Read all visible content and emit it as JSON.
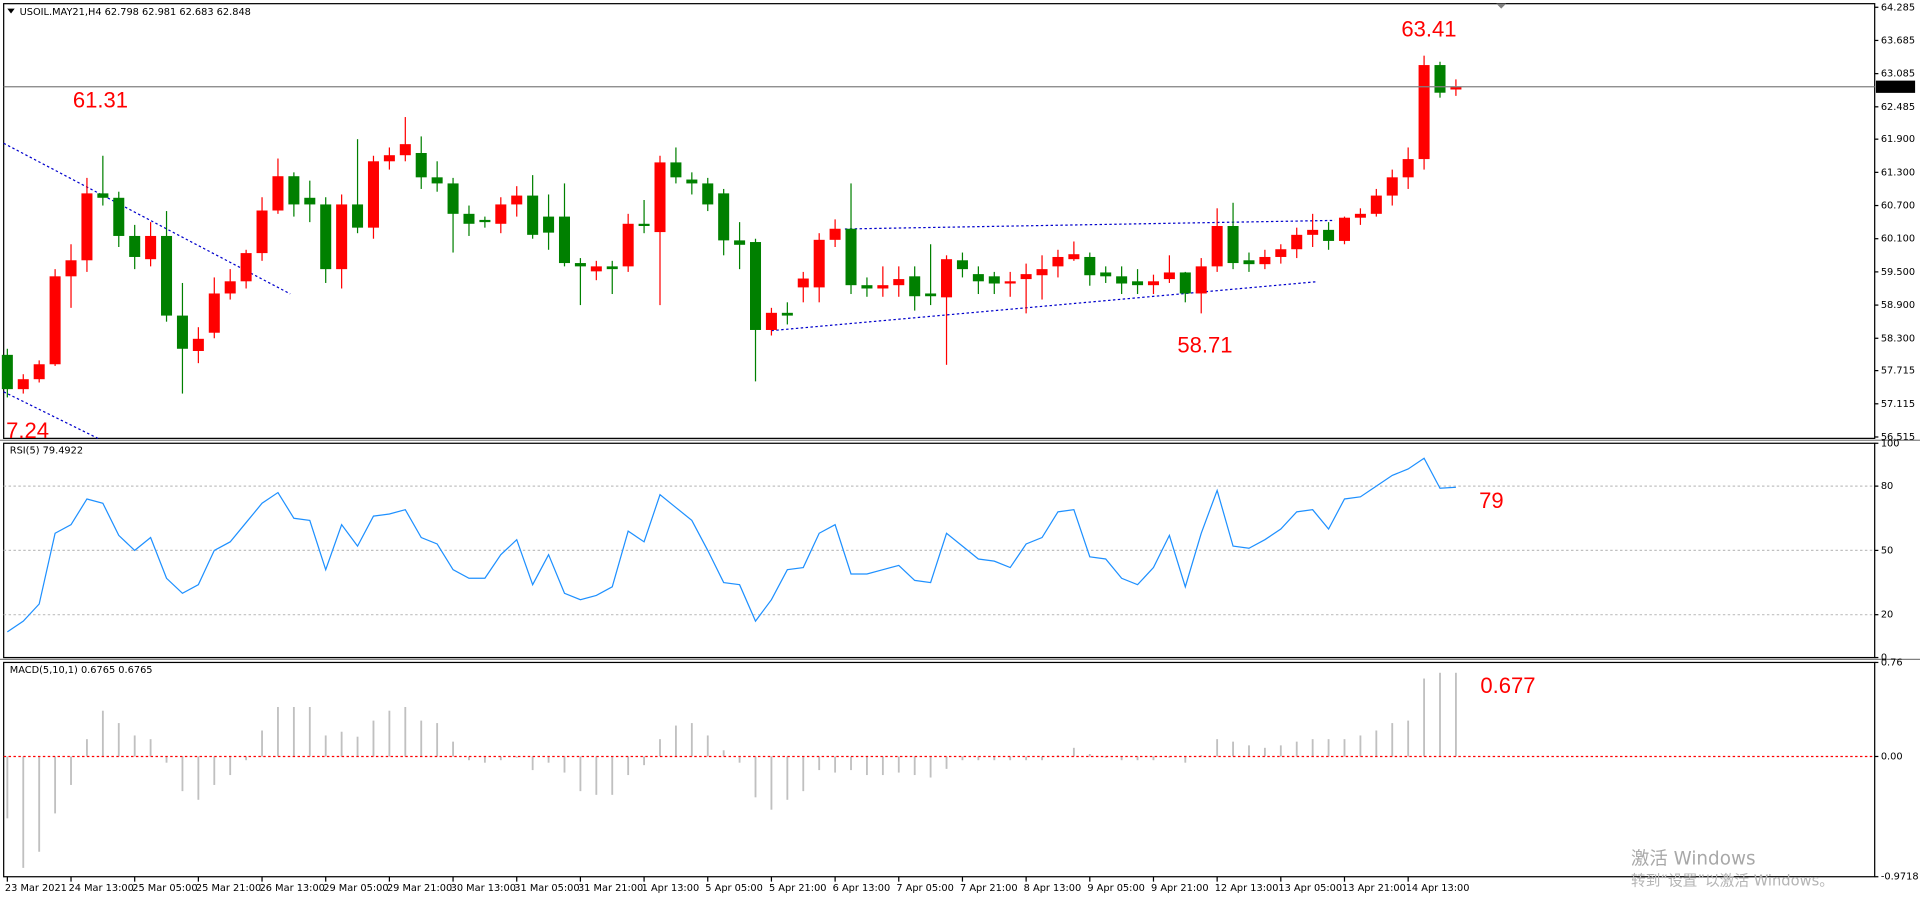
{
  "chart_data": [
    {
      "type": "candlestick",
      "title": "USOIL.MAY21,H4 62.798 62.981 62.683 62.848",
      "categories": [
        "23 Mar 2021",
        null,
        null,
        null,
        "24 Mar 13:00",
        null,
        null,
        null,
        "25 Mar 05:00",
        null,
        null,
        null,
        "25 Mar 21:00",
        null,
        null,
        null,
        "26 Mar 13:00",
        null,
        null,
        null,
        "29 Mar 05:00",
        null,
        null,
        null,
        "29 Mar 21:00",
        null,
        null,
        null,
        "30 Mar 13:00",
        null,
        null,
        null,
        "31 Mar 05:00",
        null,
        null,
        null,
        "31 Mar 21:00",
        null,
        null,
        null,
        "1 Apr 13:00",
        null,
        null,
        null,
        "5 Apr 05:00",
        null,
        null,
        null,
        "5 Apr 21:00",
        null,
        null,
        null,
        "6 Apr 13:00",
        null,
        null,
        null,
        "7 Apr 05:00",
        null,
        null,
        null,
        "7 Apr 21:00",
        null,
        null,
        null,
        "8 Apr 13:00",
        null,
        null,
        null,
        "9 Apr 05:00",
        null,
        null,
        null,
        "9 Apr 21:00",
        null,
        null,
        null,
        "12 Apr 13:00",
        null,
        null,
        null,
        "13 Apr 05:00",
        null,
        null,
        null,
        "13 Apr 21:00",
        null,
        null,
        null,
        "14 Apr 13:00",
        null,
        null,
        null
      ],
      "open": [
        58.0,
        57.38,
        57.56,
        57.83,
        59.42,
        59.71,
        60.92,
        60.84,
        60.15,
        59.73,
        60.15,
        58.71,
        58.07,
        58.4,
        59.11,
        59.33,
        59.84,
        60.61,
        61.23,
        60.84,
        60.72,
        59.55,
        60.72,
        60.3,
        61.5,
        61.61,
        61.65,
        61.21,
        61.1,
        60.55,
        60.44,
        60.37,
        60.72,
        60.88,
        60.5,
        60.5,
        59.66,
        59.51,
        59.6,
        59.6,
        60.37,
        60.22,
        61.48,
        61.17,
        61.1,
        60.92,
        60.07,
        60.04,
        58.45,
        58.76,
        59.22,
        59.22,
        60.08,
        60.28,
        59.26,
        59.2,
        59.26,
        59.42,
        59.11,
        59.04,
        59.71,
        59.46,
        59.42,
        59.29,
        59.37,
        59.44,
        59.6,
        59.73,
        59.77,
        59.49,
        59.42,
        59.33,
        59.26,
        59.37,
        59.49,
        59.11,
        59.6,
        60.33,
        59.71,
        59.64,
        59.77,
        59.91,
        60.17,
        60.26,
        60.06,
        60.48,
        60.55,
        60.88,
        61.21,
        61.54,
        63.24,
        62.798
      ],
      "high": [
        58.11,
        57.65,
        57.9,
        59.55,
        60.0,
        61.2,
        61.6,
        60.95,
        60.35,
        60.4,
        60.6,
        59.3,
        58.5,
        59.4,
        59.55,
        59.9,
        60.85,
        61.55,
        61.3,
        61.15,
        60.85,
        60.9,
        61.9,
        61.6,
        61.75,
        62.3,
        61.95,
        61.5,
        61.2,
        60.7,
        60.5,
        60.85,
        61.05,
        61.25,
        60.9,
        61.1,
        59.75,
        59.7,
        59.7,
        60.55,
        60.8,
        61.6,
        61.75,
        61.3,
        61.2,
        61.0,
        60.4,
        60.1,
        58.85,
        58.95,
        59.5,
        60.2,
        60.45,
        61.1,
        59.4,
        59.6,
        59.6,
        59.6,
        60.0,
        59.8,
        59.85,
        59.6,
        59.5,
        59.5,
        59.65,
        59.8,
        59.9,
        60.05,
        59.85,
        59.6,
        59.6,
        59.55,
        59.45,
        59.8,
        59.5,
        59.75,
        60.65,
        60.75,
        59.85,
        59.9,
        60.0,
        60.3,
        60.55,
        60.4,
        60.5,
        60.65,
        61.0,
        61.35,
        61.75,
        63.41,
        63.3,
        62.981
      ],
      "low": [
        57.23,
        57.3,
        57.5,
        57.8,
        58.85,
        59.5,
        60.7,
        59.95,
        59.55,
        59.6,
        58.6,
        57.3,
        57.85,
        58.3,
        59.0,
        59.2,
        59.7,
        60.55,
        60.5,
        60.4,
        59.3,
        59.2,
        60.2,
        60.1,
        61.35,
        61.5,
        61.0,
        60.95,
        59.85,
        60.15,
        60.3,
        60.2,
        60.5,
        60.1,
        59.9,
        59.6,
        58.9,
        59.35,
        59.1,
        59.5,
        60.2,
        58.9,
        61.1,
        60.9,
        60.6,
        59.8,
        59.55,
        57.52,
        58.35,
        58.55,
        58.95,
        58.95,
        59.95,
        59.1,
        59.05,
        59.05,
        59.05,
        58.8,
        58.9,
        57.82,
        59.4,
        59.1,
        59.1,
        59.05,
        58.75,
        59.0,
        59.4,
        59.7,
        59.25,
        59.3,
        59.1,
        59.1,
        59.1,
        59.3,
        58.95,
        58.75,
        59.5,
        59.55,
        59.5,
        59.55,
        59.65,
        59.75,
        59.95,
        59.9,
        60.0,
        60.35,
        60.5,
        60.7,
        61.0,
        61.35,
        62.65,
        62.683
      ],
      "close": [
        57.38,
        57.56,
        57.83,
        59.42,
        59.71,
        60.92,
        60.84,
        60.15,
        59.77,
        60.15,
        58.71,
        58.11,
        58.29,
        59.11,
        59.33,
        59.84,
        60.61,
        61.23,
        60.72,
        60.72,
        59.55,
        60.72,
        60.3,
        61.5,
        61.61,
        61.81,
        61.21,
        61.1,
        60.55,
        60.37,
        60.4,
        60.72,
        60.88,
        60.17,
        60.21,
        59.66,
        59.6,
        59.6,
        59.55,
        60.37,
        60.33,
        61.48,
        61.21,
        61.1,
        60.72,
        60.07,
        59.99,
        58.45,
        58.76,
        58.71,
        59.38,
        60.08,
        60.28,
        59.26,
        59.2,
        59.26,
        59.37,
        59.06,
        59.06,
        59.73,
        59.55,
        59.33,
        59.29,
        59.33,
        59.46,
        59.55,
        59.77,
        59.82,
        59.44,
        59.42,
        59.29,
        59.26,
        59.33,
        59.49,
        59.11,
        59.6,
        60.33,
        59.66,
        59.64,
        59.77,
        59.91,
        60.17,
        60.26,
        60.06,
        60.48,
        60.55,
        60.88,
        61.21,
        61.54,
        63.24,
        62.74,
        62.848
      ],
      "up_color": "#ff0000",
      "down_color": "#008000",
      "ylim": [
        56.49,
        64.35
      ],
      "yticks": [
        64.285,
        63.685,
        63.085,
        62.485,
        {
          "value": 61.9,
          "label": "61.900"
        },
        {
          "value": 61.3,
          "label": "61.300"
        },
        {
          "value": 60.7,
          "label": "60.700"
        },
        {
          "value": 60.1,
          "label": "60.100"
        },
        {
          "value": 59.5,
          "label": "59.500"
        },
        {
          "value": 58.9,
          "label": "58.900"
        },
        {
          "value": 58.3,
          "label": "58.300"
        },
        57.715,
        57.115,
        56.515
      ],
      "grid": false,
      "last_price": 62.848,
      "annotations": [
        "63.41",
        "61.31",
        "58.71",
        "7.24"
      ],
      "annotation_color": "#ff0000"
    },
    {
      "type": "line",
      "title": "RSI(5) 79.4922",
      "values": [
        12,
        17,
        25,
        58,
        62,
        74,
        72,
        57,
        50,
        56,
        37,
        30,
        34,
        50,
        54,
        63,
        72,
        77,
        65,
        64,
        41,
        62,
        52,
        66,
        67,
        69,
        56,
        53,
        41,
        37,
        37,
        48,
        55,
        34,
        48,
        30,
        27,
        29,
        33,
        59,
        54,
        76,
        70,
        64,
        50,
        35,
        34,
        17,
        27,
        41,
        42,
        58,
        62,
        39,
        39,
        41,
        43,
        36,
        35,
        58,
        52,
        46,
        45,
        42,
        53,
        56,
        68,
        69,
        47,
        46,
        37,
        34,
        42,
        57,
        33,
        58,
        78,
        52,
        51,
        55,
        60,
        68,
        69,
        60,
        74,
        75,
        80,
        85,
        88,
        93,
        79,
        79.4922
      ],
      "color": "#1e90ff",
      "ylim": [
        0,
        100
      ],
      "yticks": [
        100,
        80,
        50,
        20,
        0
      ],
      "grid": true,
      "annotations": [
        "79"
      ],
      "annotation_color": "#ff0000"
    },
    {
      "type": "bar",
      "title": "MACD(5,10,1) 0.6765 0.6765",
      "values": [
        -0.5,
        -0.9,
        -0.77,
        -0.46,
        -0.23,
        0.14,
        0.37,
        0.27,
        0.17,
        0.14,
        -0.05,
        -0.28,
        -0.35,
        -0.23,
        -0.15,
        -0.03,
        0.21,
        0.4,
        0.4,
        0.4,
        0.17,
        0.2,
        0.16,
        0.29,
        0.37,
        0.4,
        0.29,
        0.27,
        0.12,
        -0.03,
        -0.05,
        -0.03,
        -0.01,
        -0.11,
        -0.05,
        -0.13,
        -0.28,
        -0.31,
        -0.31,
        -0.15,
        -0.07,
        0.14,
        0.25,
        0.27,
        0.17,
        0.05,
        -0.05,
        -0.33,
        -0.43,
        -0.35,
        -0.28,
        -0.11,
        -0.13,
        -0.11,
        -0.15,
        -0.15,
        -0.13,
        -0.15,
        -0.17,
        -0.1,
        -0.03,
        -0.03,
        -0.03,
        -0.03,
        -0.03,
        -0.03,
        0.01,
        0.07,
        0.02,
        -0.01,
        -0.03,
        -0.03,
        -0.03,
        -0.01,
        -0.05,
        0.01,
        0.14,
        0.12,
        0.09,
        0.07,
        0.09,
        0.12,
        0.14,
        0.14,
        0.14,
        0.17,
        0.21,
        0.27,
        0.29,
        0.63,
        0.6765,
        0.6765
      ],
      "color": "#c0c0c0",
      "ylim": [
        -0.9718,
        0.76
      ],
      "yticks": [
        0.76,
        {
          "value": 0,
          "label": "0.00"
        },
        -0.9718
      ],
      "zero_line_color": "#ff0000",
      "annotations": [
        "0.677"
      ],
      "annotation_color": "#ff0000"
    }
  ],
  "watermark": {
    "title": "激活 Windows",
    "subtitle": "转到“设置”以激活 Windows。"
  }
}
